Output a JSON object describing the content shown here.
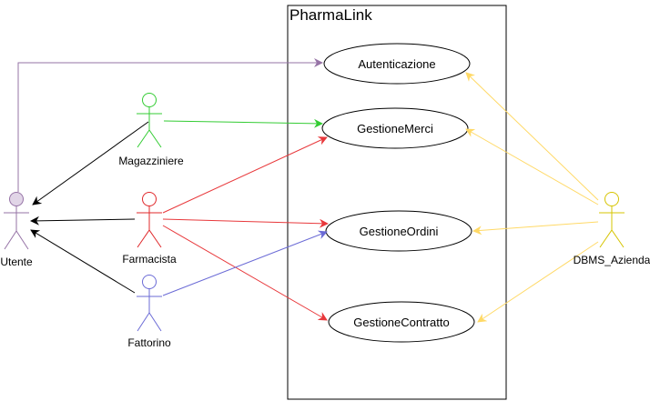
{
  "system": {
    "title": "PharmaLink"
  },
  "use_cases": [
    {
      "id": "autenticazione",
      "label": "Autenticazione"
    },
    {
      "id": "gestione-merci",
      "label": "GestioneMerci"
    },
    {
      "id": "gestione-ordini",
      "label": "GestioneOrdini"
    },
    {
      "id": "gestione-contratto",
      "label": "GestioneContratto"
    }
  ],
  "actors": [
    {
      "id": "utente",
      "label": "Utente",
      "color": "#9673a6",
      "fill": "#e1d5e7"
    },
    {
      "id": "magazziniere",
      "label": "Magazziniere",
      "color": "#33cc33"
    },
    {
      "id": "farmacista",
      "label": "Farmacista",
      "color": "#e0282b"
    },
    {
      "id": "fattorino",
      "label": "Fattorino",
      "color": "#6b6bd6"
    },
    {
      "id": "dbms-azienda",
      "label": "DBMS_Azienda",
      "color": "#d6c400"
    }
  ],
  "colors": {
    "utente_edge": "#9673a6",
    "magazziniere_edge": "#33cc33",
    "farmacista_edge": "#e8383b",
    "fattorino_edge": "#6b6bd6",
    "dbms_edge": "#ffd966",
    "generalization": "#000000"
  }
}
